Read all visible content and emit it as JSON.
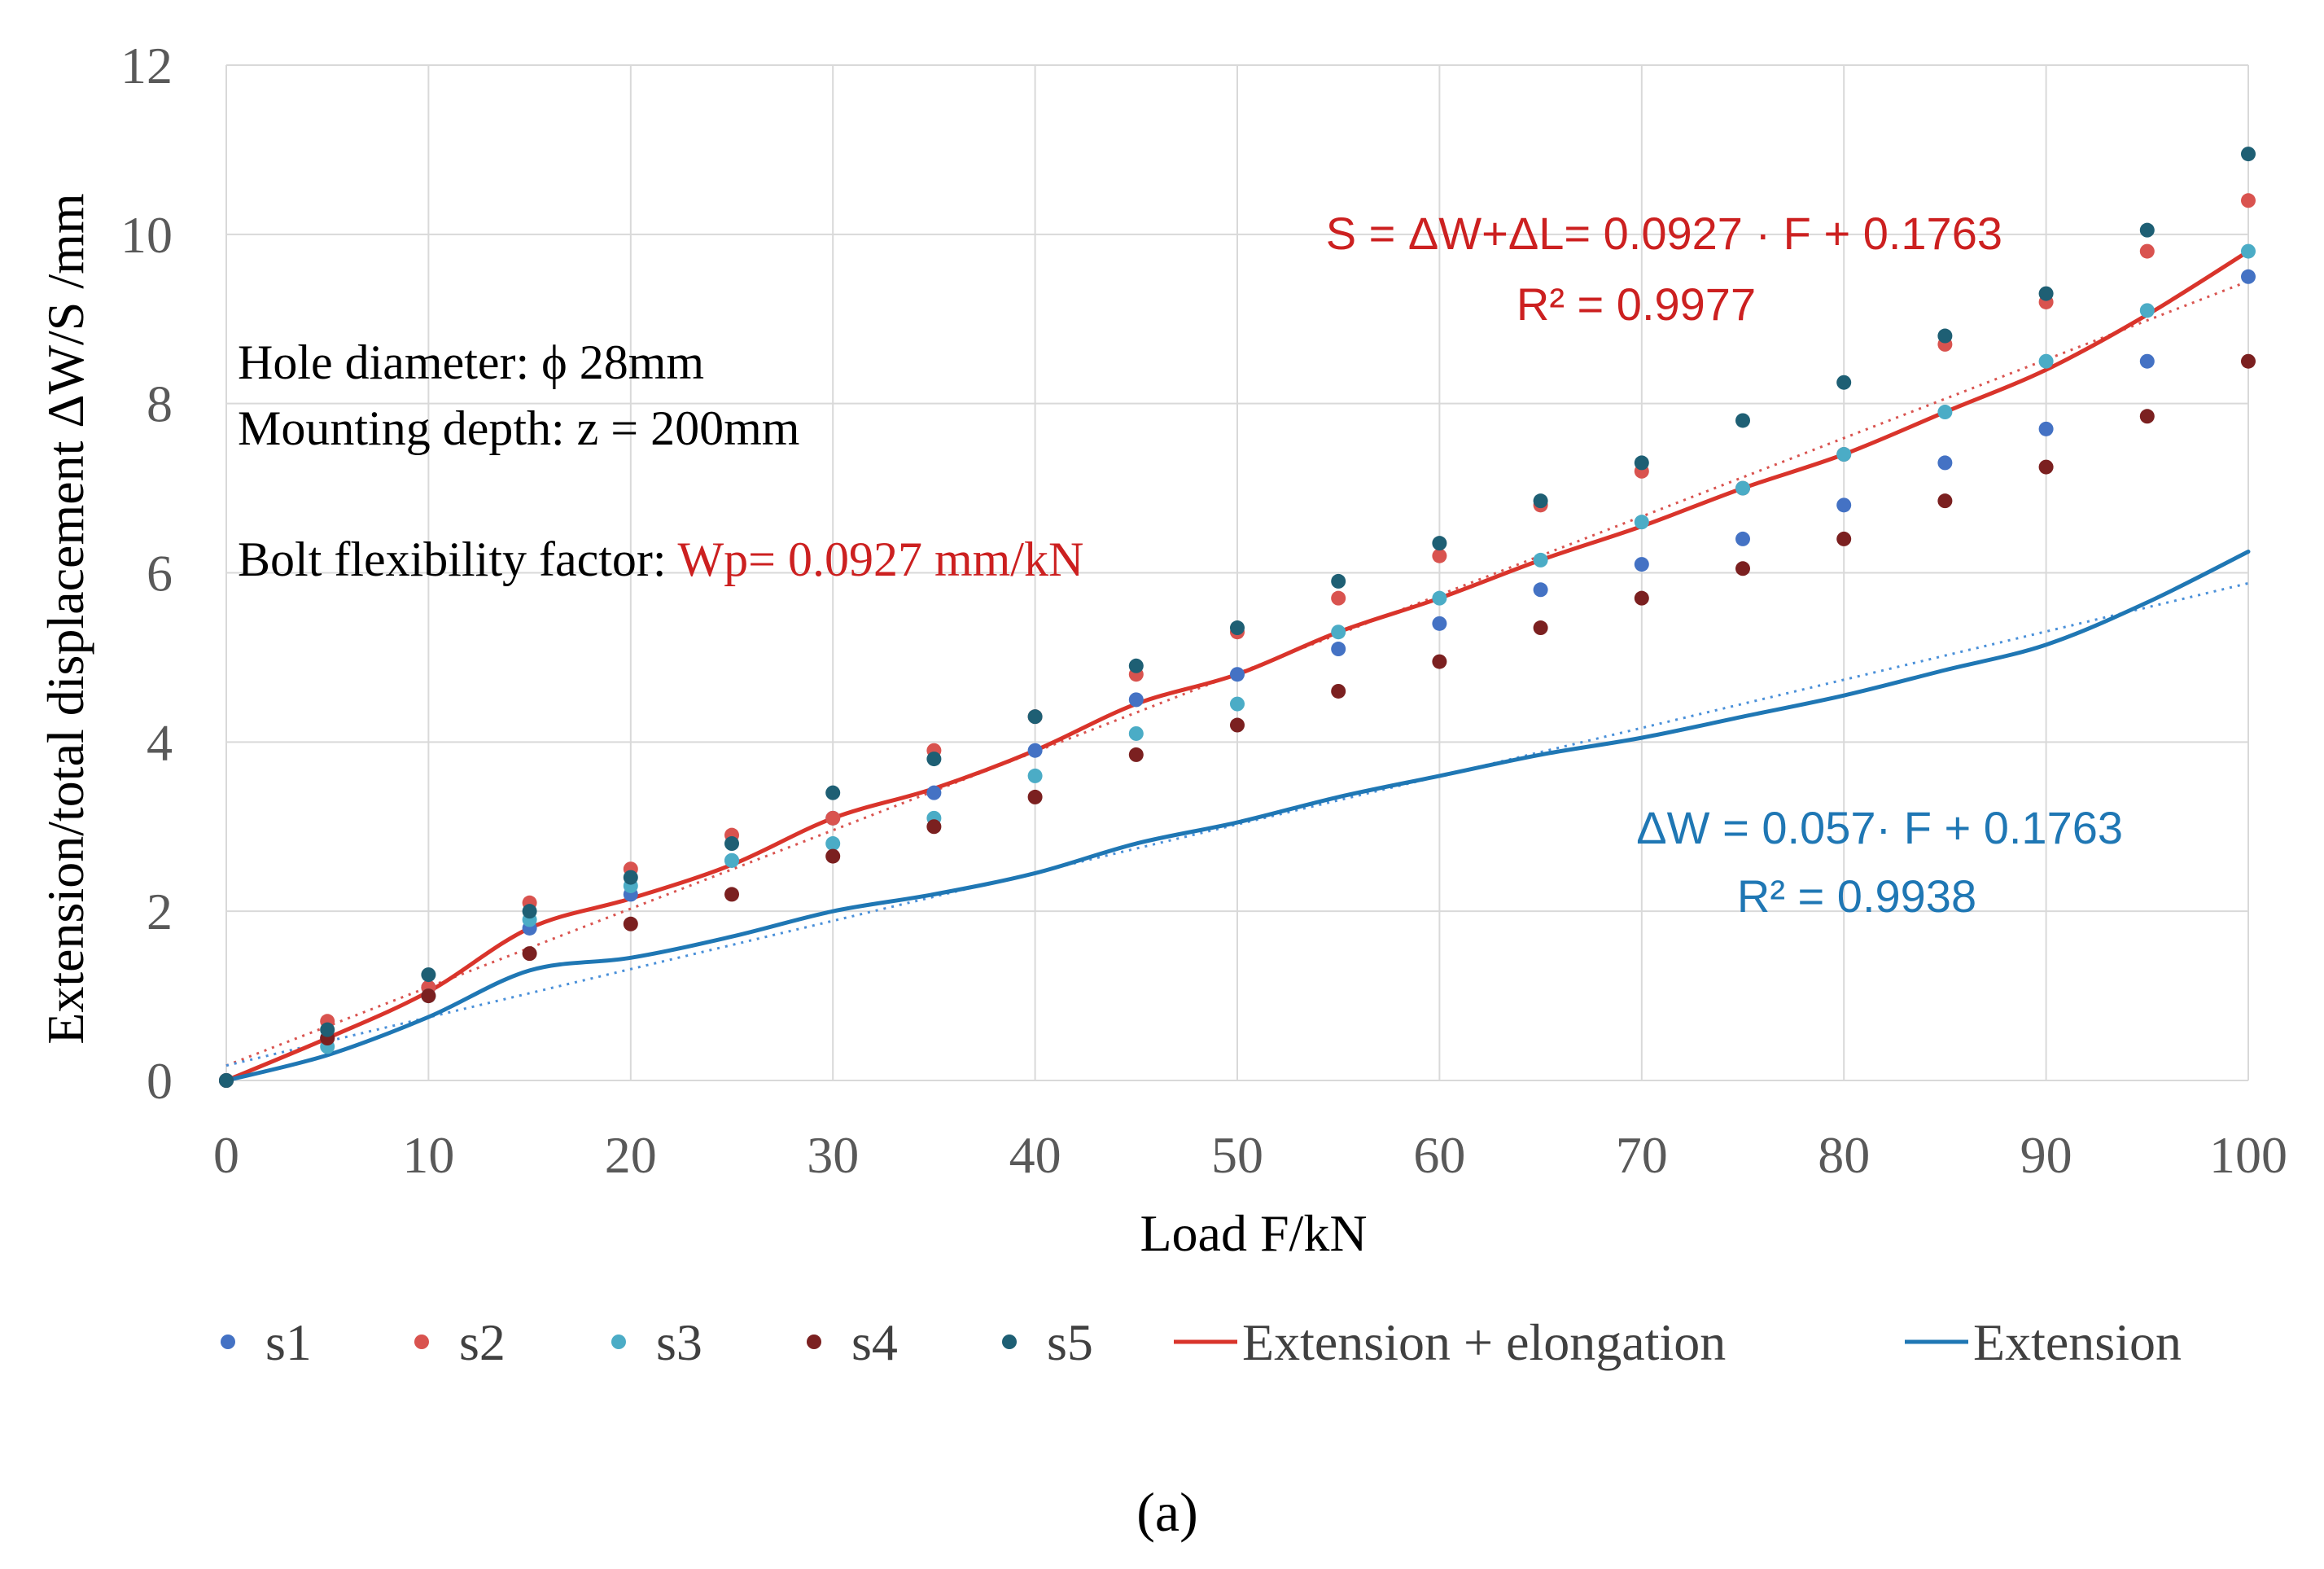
{
  "chart_data": {
    "type": "scatter",
    "title": "",
    "xlabel": "Load F/kN",
    "ylabel": "Extension/total displacement ΔW/S /mm",
    "xlim": [
      0,
      100
    ],
    "ylim": [
      0,
      12
    ],
    "x_ticks": [
      "0",
      "10",
      "20",
      "30",
      "40",
      "50",
      "60",
      "70",
      "80",
      "90",
      "100"
    ],
    "y_ticks": [
      "0",
      "2",
      "4",
      "6",
      "8",
      "10",
      "12"
    ],
    "grid": true,
    "legend_position": "bottom",
    "x": [
      0,
      5,
      10,
      15,
      20,
      25,
      30,
      35,
      40,
      45,
      50,
      55,
      60,
      65,
      70,
      75,
      80,
      85,
      90,
      95,
      100
    ],
    "series": [
      {
        "name": "s1",
        "kind": "points",
        "color": "#4472c4",
        "values": [
          0,
          0.5,
          1.1,
          1.8,
          2.2,
          2.6,
          3.1,
          3.4,
          3.9,
          4.5,
          4.8,
          5.1,
          5.4,
          5.8,
          6.1,
          6.4,
          6.8,
          7.3,
          7.7,
          8.5,
          9.5
        ]
      },
      {
        "name": "s2",
        "kind": "points",
        "color": "#d9534f",
        "values": [
          0,
          0.7,
          1.1,
          2.1,
          2.5,
          2.9,
          3.1,
          3.9,
          4.3,
          4.8,
          5.3,
          5.7,
          6.2,
          6.8,
          7.2,
          7.0,
          7.4,
          8.7,
          9.2,
          9.8,
          10.4
        ]
      },
      {
        "name": "s3",
        "kind": "points",
        "color": "#4bacc6",
        "values": [
          0,
          0.4,
          1.0,
          1.9,
          2.3,
          2.6,
          2.8,
          3.1,
          3.6,
          4.1,
          4.45,
          5.3,
          5.7,
          6.15,
          6.6,
          7.0,
          7.4,
          7.9,
          8.5,
          9.1,
          9.8
        ]
      },
      {
        "name": "s4",
        "kind": "points",
        "color": "#7b2020",
        "values": [
          0,
          0.5,
          1.0,
          1.5,
          1.85,
          2.2,
          2.65,
          3.0,
          3.35,
          3.85,
          4.2,
          4.6,
          4.95,
          5.35,
          5.7,
          6.05,
          6.4,
          6.85,
          7.25,
          7.85,
          8.5
        ]
      },
      {
        "name": "s5",
        "kind": "points",
        "color": "#1e5f74",
        "values": [
          0,
          0.6,
          1.25,
          2.0,
          2.4,
          2.8,
          3.4,
          3.8,
          4.3,
          4.9,
          5.35,
          5.9,
          6.35,
          6.85,
          7.3,
          7.8,
          8.25,
          8.8,
          9.3,
          10.05,
          10.95
        ]
      },
      {
        "name": "Extension + elongation",
        "kind": "line",
        "color": "#d9342b",
        "values": [
          0,
          0.5,
          1.05,
          1.8,
          2.15,
          2.55,
          3.1,
          3.45,
          3.9,
          4.45,
          4.8,
          5.3,
          5.7,
          6.15,
          6.55,
          7.0,
          7.4,
          7.9,
          8.4,
          9.05,
          9.8
        ]
      },
      {
        "name": "Extension",
        "kind": "line",
        "color": "#1f77b4",
        "values": [
          0,
          0.3,
          0.75,
          1.3,
          1.45,
          1.7,
          2.0,
          2.2,
          2.45,
          2.8,
          3.05,
          3.35,
          3.6,
          3.85,
          4.05,
          4.3,
          4.55,
          4.85,
          5.15,
          5.65,
          6.25
        ]
      }
    ],
    "trendlines": [
      {
        "name": "S trend",
        "color": "#d9534f",
        "slope": 0.0927,
        "intercept": 0.1763
      },
      {
        "name": "ΔW trend",
        "color": "#4a90d9",
        "slope": 0.057,
        "intercept": 0.1763
      }
    ],
    "annotations": {
      "hole_diameter": "Hole diameter: ϕ 28mm",
      "mounting_depth": "Mounting depth:  z = 200mm",
      "flex_prefix": "Bolt flexibility factor: ",
      "flex_value": "Wp= 0.0927 mm/kN",
      "eq_s": "S = ΔW+ΔL= 0.0927 · F + 0.1763",
      "r2_s": "R² = 0.9977",
      "eq_w": "ΔW = 0.057· F + 0.1763",
      "r2_w": "R² = 0.9938"
    },
    "caption": "(a)"
  }
}
